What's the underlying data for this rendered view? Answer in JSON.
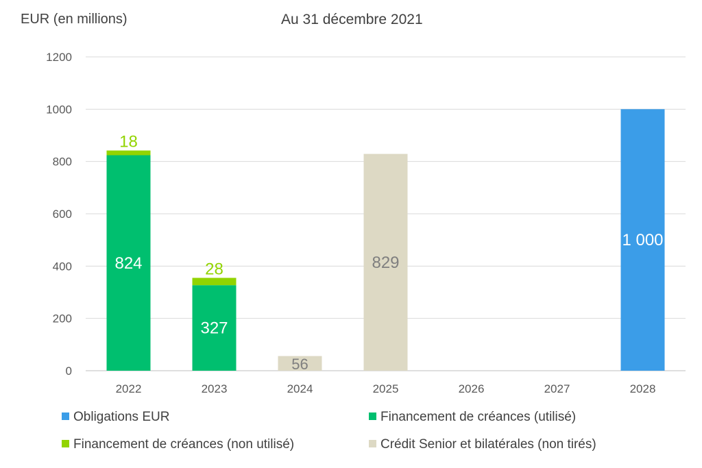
{
  "chart_data": {
    "type": "bar",
    "stacked": true,
    "title": "Au 31 décembre 2021",
    "ylabel": "EUR (en millions)",
    "xlabel": "",
    "ylim": [
      0,
      1200
    ],
    "yticks": [
      "0",
      "200",
      "400",
      "600",
      "800",
      "1000",
      "1200"
    ],
    "grid": true,
    "legend_position": "bottom",
    "categories": [
      "2022",
      "2023",
      "2024",
      "2025",
      "2026",
      "2027",
      "2028"
    ],
    "series": [
      {
        "name": "Obligations EUR",
        "color": "#3b9de8",
        "values": [
          0,
          0,
          0,
          0,
          0,
          0,
          1000
        ],
        "labels": [
          "",
          "",
          "",
          "",
          "",
          "",
          "1 000"
        ],
        "label_color": "#ffffff"
      },
      {
        "name": "Financement de créances (utilisé)",
        "color": "#00bf6f",
        "values": [
          824,
          327,
          0,
          0,
          0,
          0,
          0
        ],
        "labels": [
          "824",
          "327",
          "",
          "",
          "",
          "",
          ""
        ],
        "label_color": "#ffffff"
      },
      {
        "name": "Financement de créances (non utilisé)",
        "color": "#92d400",
        "values": [
          18,
          28,
          0,
          0,
          0,
          0,
          0
        ],
        "labels": [
          "18",
          "28",
          "",
          "",
          "",
          "",
          ""
        ],
        "label_color": "#92d400"
      },
      {
        "name": "Crédit Senior et bilatérales (non tirés)",
        "color": "#ddd9c4",
        "values": [
          0,
          0,
          56,
          829,
          0,
          0,
          0
        ],
        "labels": [
          "",
          "",
          "56",
          "829",
          "",
          "",
          ""
        ],
        "label_color": "#7f7f7f"
      }
    ]
  }
}
